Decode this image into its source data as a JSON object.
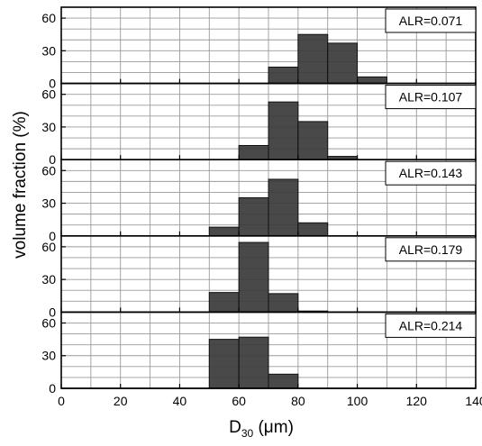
{
  "chart_data": {
    "type": "bar",
    "layout": "stacked-panels",
    "xlabel_main": "D",
    "xlabel_sub": "30",
    "xlabel_unit": " (μm)",
    "ylabel": "volume fraction (%)",
    "xlim": [
      0,
      140
    ],
    "xticks": [
      "0",
      "20",
      "40",
      "60",
      "80",
      "100",
      "120",
      "140"
    ],
    "ylim": [
      0,
      70
    ],
    "yticks": [
      "0",
      "30",
      "60"
    ],
    "grid": true,
    "bin_edges": [
      50,
      60,
      70,
      80,
      90,
      100,
      110
    ],
    "panels": [
      {
        "label": "ALR=0.071",
        "values": [
          0,
          0,
          15,
          45,
          37,
          6
        ]
      },
      {
        "label": "ALR=0.107",
        "values": [
          0,
          13,
          53,
          35,
          3,
          0
        ]
      },
      {
        "label": "ALR=0.143",
        "values": [
          8,
          35,
          52,
          12,
          0,
          0
        ]
      },
      {
        "label": "ALR=0.179",
        "values": [
          18,
          64,
          17,
          1,
          0,
          0
        ]
      },
      {
        "label": "ALR=0.214",
        "values": [
          45,
          47,
          13,
          0,
          0,
          0
        ]
      }
    ]
  }
}
